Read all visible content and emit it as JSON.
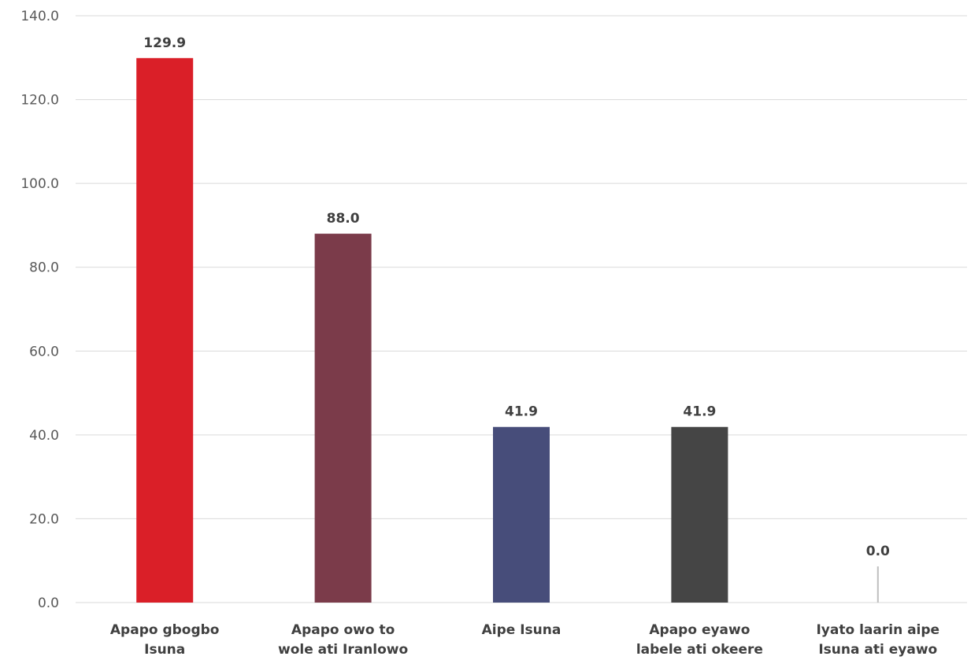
{
  "chart_data": {
    "type": "bar",
    "categories": [
      [
        "Apapo gbogbo",
        "Isuna"
      ],
      [
        "Apapo owo to",
        "wole ati Iranlowo"
      ],
      [
        "Aipe Isuna"
      ],
      [
        "Apapo eyawo",
        "labele ati okeere"
      ],
      [
        "Iyato laarin aipe",
        "Isuna ati eyawo"
      ]
    ],
    "values": [
      129.9,
      88.0,
      41.9,
      41.9,
      0.0
    ],
    "value_labels": [
      "129.9",
      "88.0",
      "41.9",
      "41.9",
      "0.0"
    ],
    "colors": [
      "#da1f28",
      "#7b3b4a",
      "#474d7a",
      "#454545",
      "#bfbfbf"
    ],
    "ylim": [
      0,
      140
    ],
    "yticks": [
      "0.0",
      "20.0",
      "40.0",
      "60.0",
      "80.0",
      "100.0",
      "120.0",
      "140.0"
    ],
    "title": "",
    "xlabel": "",
    "ylabel": "",
    "grid": true,
    "legend": "none"
  }
}
